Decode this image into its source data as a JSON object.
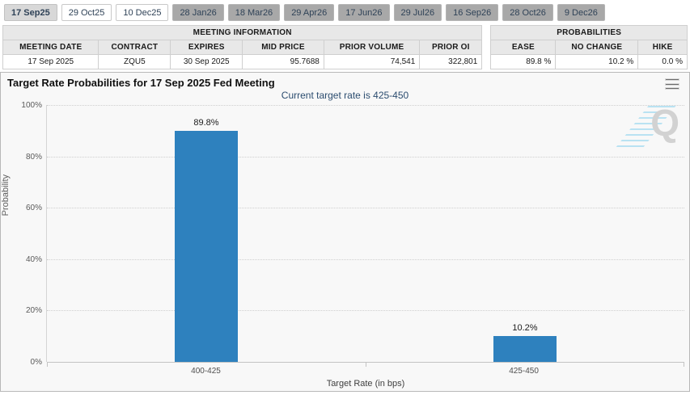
{
  "tabs": [
    {
      "label": "17 Sep25",
      "state": "selected"
    },
    {
      "label": "29 Oct25",
      "state": "light"
    },
    {
      "label": "10 Dec25",
      "state": "light"
    },
    {
      "label": "28 Jan26",
      "state": "dark"
    },
    {
      "label": "18 Mar26",
      "state": "dark"
    },
    {
      "label": "29 Apr26",
      "state": "dark"
    },
    {
      "label": "17 Jun26",
      "state": "dark"
    },
    {
      "label": "29 Jul26",
      "state": "dark"
    },
    {
      "label": "16 Sep26",
      "state": "dark"
    },
    {
      "label": "28 Oct26",
      "state": "dark"
    },
    {
      "label": "9 Dec26",
      "state": "dark"
    }
  ],
  "meeting_info": {
    "title": "MEETING INFORMATION",
    "columns": [
      "MEETING DATE",
      "CONTRACT",
      "EXPIRES",
      "MID PRICE",
      "PRIOR VOLUME",
      "PRIOR OI"
    ],
    "row": {
      "meeting_date": "17 Sep 2025",
      "contract": "ZQU5",
      "expires": "30 Sep 2025",
      "mid_price": "95.7688",
      "prior_volume": "74,541",
      "prior_oi": "322,801"
    }
  },
  "probabilities": {
    "title": "PROBABILITIES",
    "columns": [
      "EASE",
      "NO CHANGE",
      "HIKE"
    ],
    "row": {
      "ease": "89.8 %",
      "no_change": "10.2 %",
      "hike": "0.0 %"
    }
  },
  "chart": {
    "title": "Target Rate Probabilities for 17 Sep 2025 Fed Meeting",
    "subtitle": "Current target rate is 425-450",
    "menu_icon": "hamburger-menu-icon",
    "watermark_letter": "Q"
  },
  "chart_data": {
    "type": "bar",
    "title": "Target Rate Probabilities for 17 Sep 2025 Fed Meeting",
    "subtitle": "Current target rate is 425-450",
    "categories": [
      "400-425",
      "425-450"
    ],
    "values": [
      89.8,
      10.2
    ],
    "labels": [
      "89.8%",
      "10.2%"
    ],
    "xlabel": "Target Rate (in bps)",
    "ylabel": "Probability",
    "ylim": [
      0,
      100
    ],
    "yticks": [
      "0%",
      "20%",
      "40%",
      "60%",
      "80%",
      "100%"
    ],
    "grid": "dotted horizontal",
    "legend": "none",
    "bar_color": "#2e81be"
  }
}
